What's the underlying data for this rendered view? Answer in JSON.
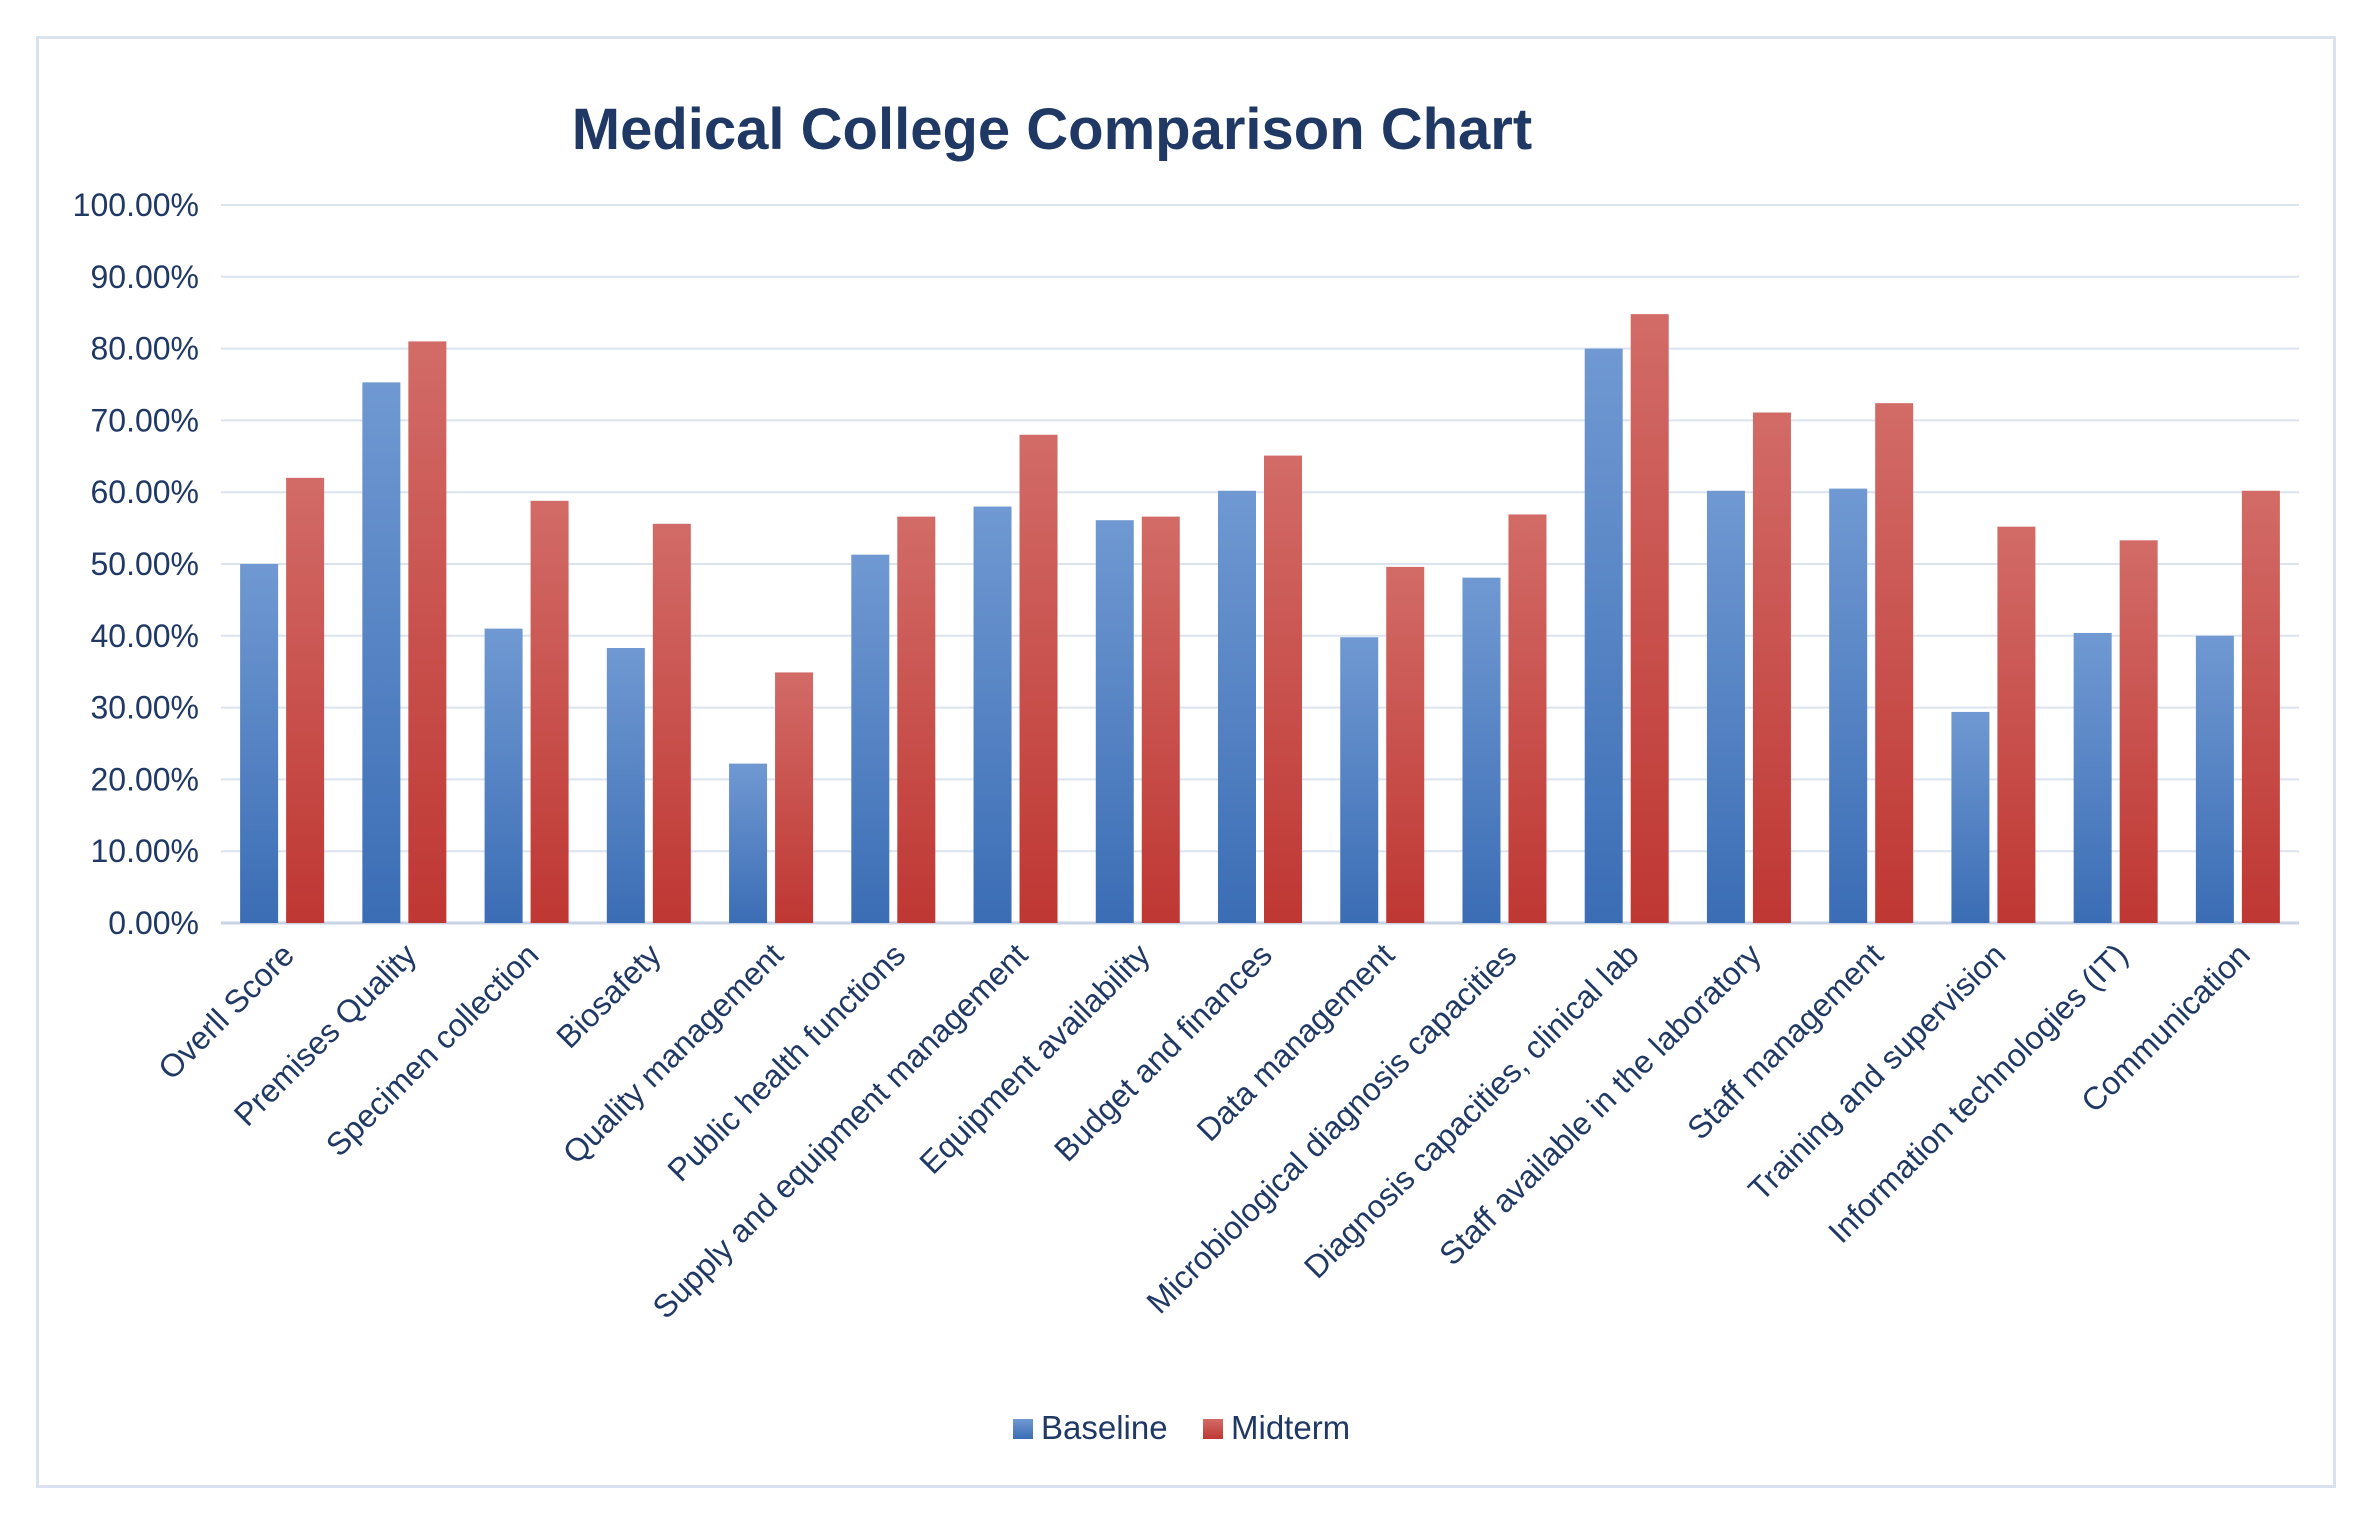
{
  "chart_data": {
    "type": "bar",
    "title": "Medical College Comparison Chart",
    "xlabel": "",
    "ylabel": "",
    "ylim": [
      0,
      1.0
    ],
    "ytick_labels": [
      "0.00%",
      "10.00%",
      "20.00%",
      "30.00%",
      "40.00%",
      "50.00%",
      "60.00%",
      "70.00%",
      "80.00%",
      "90.00%",
      "100.00%"
    ],
    "grid": true,
    "legend_position": "bottom",
    "categories": [
      "Overll Score",
      "Premises Quality",
      "Specimen collection",
      "Biosafety",
      "Quality management",
      "Public health functions",
      "Supply and equipment management",
      "Equipment availability",
      "Budget and finances",
      "Data management",
      "Microbiological diagnosis capacities",
      "Diagnosis capacities, clinical lab",
      "Staff available in the laboratory",
      "Staff management",
      "Training and supervision",
      "Information technologies (IT)",
      "Communication"
    ],
    "series": [
      {
        "name": "Baseline",
        "color": "#4a7ec4",
        "values": [
          0.5,
          0.753,
          0.41,
          0.383,
          0.222,
          0.513,
          0.58,
          0.561,
          0.602,
          0.398,
          0.481,
          0.8,
          0.602,
          0.605,
          0.294,
          0.404,
          0.4
        ]
      },
      {
        "name": "Midterm",
        "color": "#c8413e",
        "values": [
          0.62,
          0.81,
          0.588,
          0.556,
          0.349,
          0.566,
          0.68,
          0.566,
          0.651,
          0.496,
          0.569,
          0.848,
          0.711,
          0.724,
          0.552,
          0.533,
          0.602
        ]
      }
    ]
  }
}
